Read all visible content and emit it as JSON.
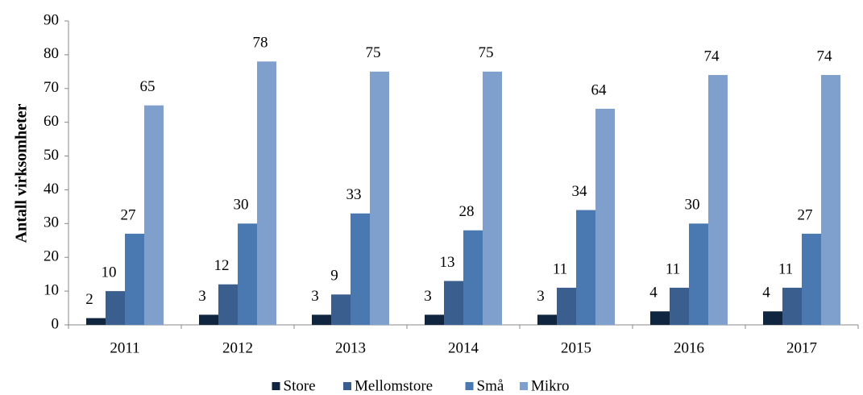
{
  "chart_data": {
    "type": "bar",
    "y_label": "Antall virksomheter",
    "categories": [
      "2011",
      "2012",
      "2013",
      "2014",
      "2015",
      "2016",
      "2017"
    ],
    "series": [
      {
        "name": "Store",
        "color": "#10253f",
        "values": [
          2,
          3,
          3,
          3,
          3,
          4,
          4
        ]
      },
      {
        "name": "Mellomstore",
        "color": "#3a5f8f",
        "values": [
          10,
          12,
          9,
          13,
          11,
          11,
          11
        ]
      },
      {
        "name": "Små",
        "color": "#4a78b0",
        "values": [
          27,
          30,
          33,
          28,
          34,
          30,
          27
        ]
      },
      {
        "name": "Mikro",
        "color": "#7f9fcc",
        "values": [
          65,
          78,
          75,
          75,
          64,
          74,
          74
        ]
      }
    ],
    "ylim": [
      0,
      90
    ],
    "yticks": [
      0,
      10,
      20,
      30,
      40,
      50,
      60,
      70,
      80,
      90
    ],
    "grid": false,
    "legend": "bottom"
  }
}
